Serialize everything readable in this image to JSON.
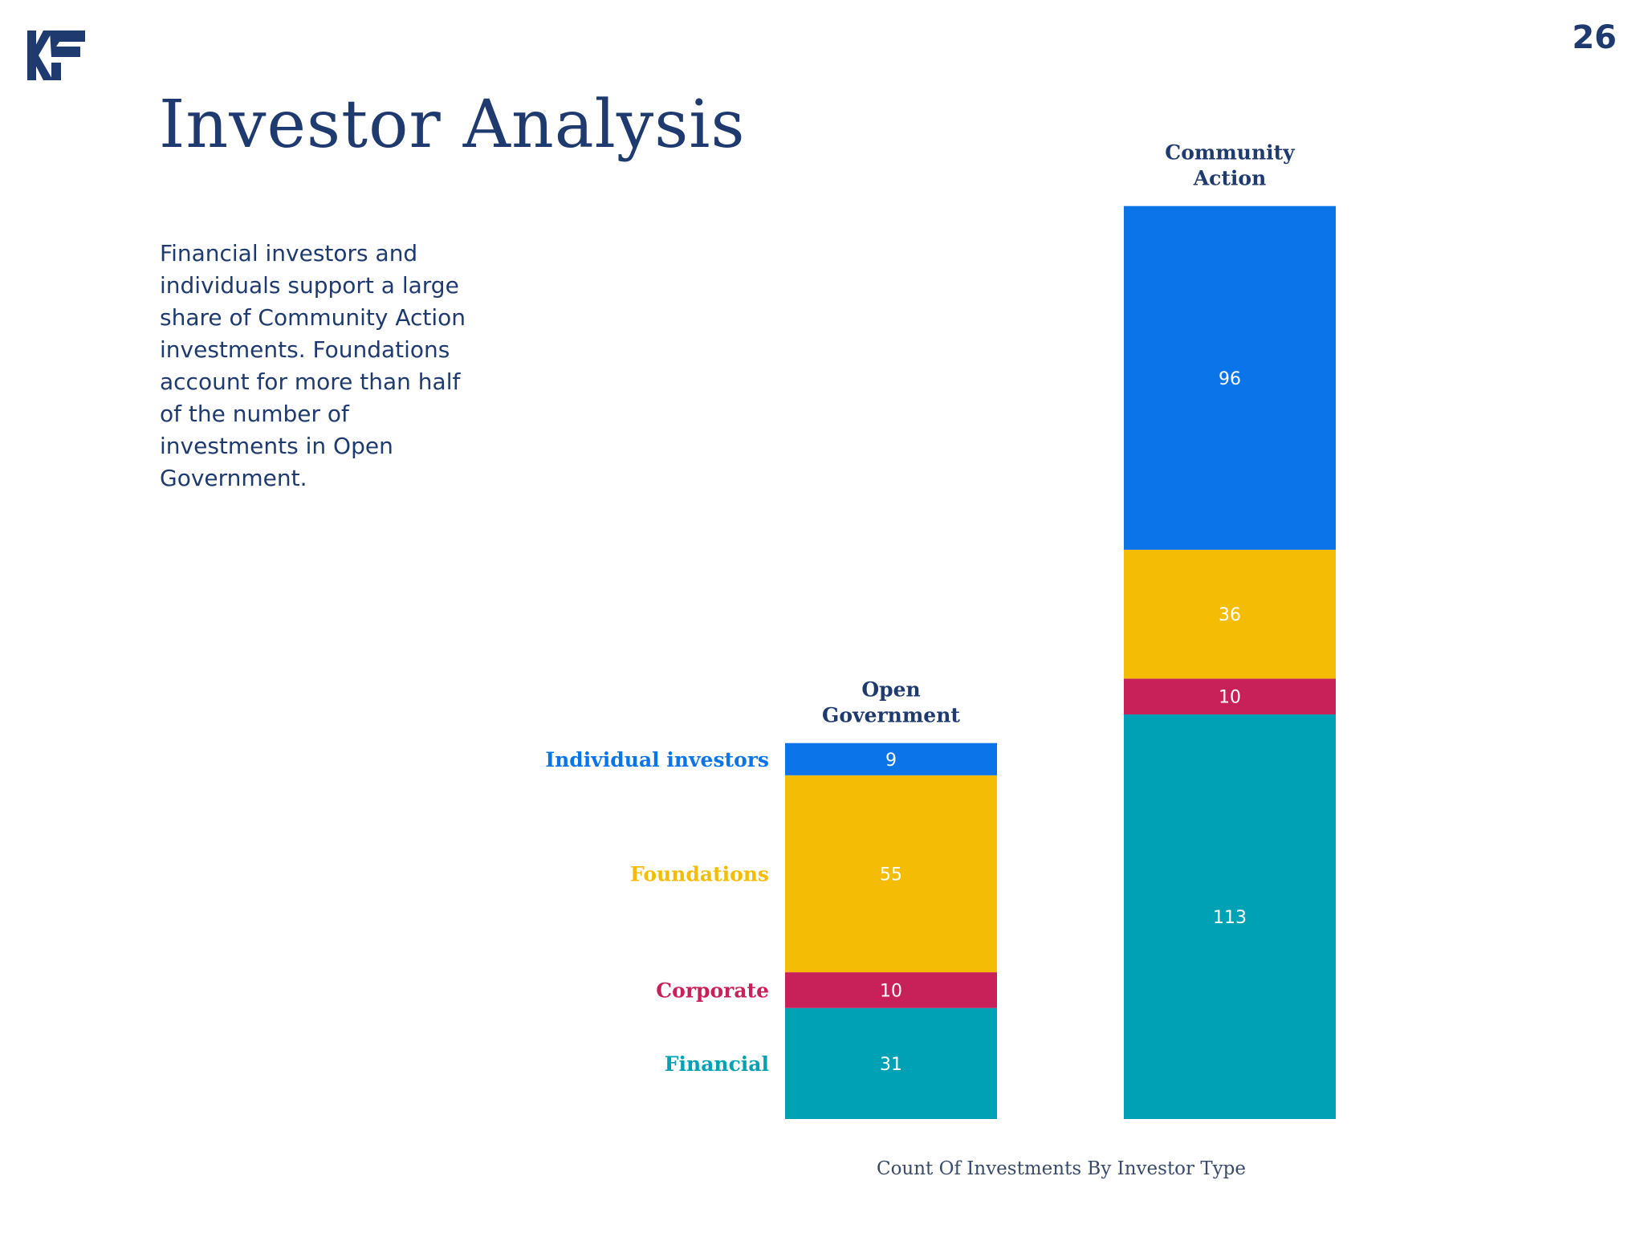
{
  "page": {
    "number": "26",
    "title": "Investor Analysis",
    "description": "Financial investors and individuals support a large share of Community Action investments. Foundations account for more than half of the number of investments in Open Government."
  },
  "colors": {
    "individual": "#0a74e8",
    "foundations": "#f5bc05",
    "corporate": "#c8215a",
    "financial": "#00a1b4",
    "navy": "#1f3a6e"
  },
  "chart_data": {
    "type": "bar",
    "stacked": true,
    "categories": [
      "Open Government",
      "Community Action"
    ],
    "series": [
      {
        "name": "Individual investors",
        "color": "#0a74e8",
        "values": [
          9,
          96
        ]
      },
      {
        "name": "Foundations",
        "color": "#f5bc05",
        "values": [
          55,
          36
        ]
      },
      {
        "name": "Corporate",
        "color": "#c8215a",
        "values": [
          10,
          10
        ]
      },
      {
        "name": "Financial",
        "color": "#00a1b4",
        "values": [
          31,
          113
        ]
      }
    ],
    "title": "",
    "xlabel": "Count Of Investments By Investor Type",
    "ylabel": "",
    "grid": false,
    "legend": "left of first bar",
    "data_labels": true
  }
}
